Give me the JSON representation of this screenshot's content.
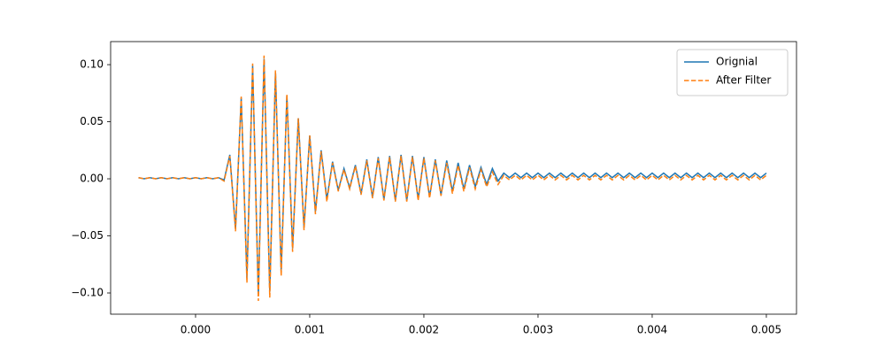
{
  "chart_data": {
    "type": "line",
    "x": [
      -0.0005,
      -0.00045,
      -0.0004,
      -0.00035,
      -0.0003,
      -0.00025,
      -0.0002,
      -0.00015,
      -0.0001,
      -5e-05,
      0,
      5e-05,
      0.0001,
      0.00015,
      0.0002,
      0.00025,
      0.0003,
      0.00035,
      0.0004,
      0.00045,
      0.0005,
      0.00055,
      0.0006,
      0.00065,
      0.0007,
      0.00075,
      0.0008,
      0.00085,
      0.0009,
      0.00095,
      0.001,
      0.00105,
      0.0011,
      0.00115,
      0.0012,
      0.00125,
      0.0013,
      0.00135,
      0.0014,
      0.00145,
      0.0015,
      0.00155,
      0.0016,
      0.00165,
      0.0017,
      0.00175,
      0.0018,
      0.00185,
      0.0019,
      0.00195,
      0.002,
      0.00205,
      0.0021,
      0.00215,
      0.0022,
      0.00225,
      0.0023,
      0.00235,
      0.0024,
      0.00245,
      0.0025,
      0.00255,
      0.0026,
      0.00265,
      0.0027,
      0.00275,
      0.0028,
      0.00285,
      0.0029,
      0.00295,
      0.003,
      0.00305,
      0.0031,
      0.00315,
      0.0032,
      0.00325,
      0.0033,
      0.00335,
      0.0034,
      0.00345,
      0.0035,
      0.00355,
      0.0036,
      0.00365,
      0.0037,
      0.00375,
      0.0038,
      0.00385,
      0.0039,
      0.00395,
      0.004,
      0.00405,
      0.0041,
      0.00415,
      0.0042,
      0.00425,
      0.0043,
      0.00435,
      0.0044,
      0.00445,
      0.0045,
      0.00455,
      0.0046,
      0.00465,
      0.0047,
      0.00475,
      0.0048,
      0.00485,
      0.0049,
      0.00495,
      0.005
    ],
    "series": [
      {
        "name": "Orignial",
        "color": "#1f77b4",
        "linestyle": "solid",
        "values": [
          0.001,
          0,
          0.001,
          0,
          0.001,
          0,
          0.001,
          0,
          0.001,
          0,
          0.001,
          0,
          0.001,
          0,
          0.001,
          -0.001,
          0.021,
          -0.044,
          0.071,
          -0.087,
          0.099,
          -0.102,
          0.105,
          -0.099,
          0.093,
          -0.081,
          0.073,
          -0.061,
          0.053,
          -0.043,
          0.038,
          -0.029,
          0.025,
          -0.018,
          0.015,
          -0.01,
          0.009,
          -0.008,
          0.012,
          -0.013,
          0.017,
          -0.016,
          0.019,
          -0.018,
          0.02,
          -0.019,
          0.021,
          -0.019,
          0.02,
          -0.018,
          0.019,
          -0.016,
          0.017,
          -0.014,
          0.016,
          -0.011,
          0.014,
          -0.009,
          0.012,
          -0.007,
          0.01,
          -0.005,
          0.009,
          -0.002,
          0.005,
          0.001,
          0.005,
          0.001,
          0.005,
          0.001,
          0.005,
          0.001,
          0.005,
          0.001,
          0.005,
          0.001,
          0.005,
          0.001,
          0.005,
          0.001,
          0.005,
          0.001,
          0.005,
          0.001,
          0.005,
          0.001,
          0.005,
          0.001,
          0.005,
          0.001,
          0.005,
          0.001,
          0.005,
          0.001,
          0.005,
          0.001,
          0.005,
          0.001,
          0.005,
          0.001,
          0.005,
          0.001,
          0.005,
          0.001,
          0.005,
          0.001,
          0.005,
          0.001,
          0.005,
          0.001,
          0.005
        ]
      },
      {
        "name": "After Filter",
        "color": "#ff7f0e",
        "linestyle": "dashed",
        "values": [
          0.001,
          0,
          0.001,
          0,
          0.001,
          0,
          0.001,
          0,
          0.001,
          0,
          0.001,
          0,
          0.001,
          0,
          0.001,
          -0.002,
          0.02,
          -0.046,
          0.072,
          -0.091,
          0.101,
          -0.107,
          0.108,
          -0.104,
          0.095,
          -0.085,
          0.074,
          -0.064,
          0.053,
          -0.045,
          0.038,
          -0.031,
          0.024,
          -0.02,
          0.014,
          -0.011,
          0.008,
          -0.009,
          0.011,
          -0.014,
          0.016,
          -0.017,
          0.018,
          -0.019,
          0.019,
          -0.02,
          0.02,
          -0.02,
          0.019,
          -0.019,
          0.018,
          -0.017,
          0.016,
          -0.015,
          0.014,
          -0.013,
          0.012,
          -0.011,
          0.01,
          -0.009,
          0.008,
          -0.007,
          0.006,
          -0.005,
          0.003,
          -0.001,
          0.003,
          -0.001,
          0.003,
          -0.001,
          0.003,
          -0.001,
          0.003,
          -0.001,
          0.003,
          -0.001,
          0.003,
          -0.001,
          0.003,
          -0.001,
          0.003,
          -0.001,
          0.003,
          -0.001,
          0.003,
          -0.001,
          0.003,
          -0.001,
          0.003,
          -0.001,
          0.003,
          -0.001,
          0.003,
          -0.001,
          0.003,
          -0.001,
          0.003,
          -0.001,
          0.003,
          -0.001,
          0.003,
          -0.001,
          0.003,
          -0.001,
          0.003,
          -0.001,
          0.003,
          -0.001,
          0.003,
          -0.001,
          0.003
        ]
      }
    ],
    "xlim": [
      -0.000744,
      0.005264
    ],
    "xticks": [
      {
        "value": 0,
        "label": "0.000"
      },
      {
        "value": 0.001,
        "label": "0.001"
      },
      {
        "value": 0.002,
        "label": "0.002"
      },
      {
        "value": 0.003,
        "label": "0.003"
      },
      {
        "value": 0.004,
        "label": "0.004"
      },
      {
        "value": 0.005,
        "label": "0.005"
      }
    ],
    "ylim": [
      -0.1186,
      0.1202
    ],
    "yticks": [
      {
        "value": -0.1,
        "label": "−0.10"
      },
      {
        "value": -0.05,
        "label": "−0.05"
      },
      {
        "value": 0,
        "label": "0.00"
      },
      0.05,
      {
        "value": 0.1,
        "label": "0.10"
      }
    ],
    "grid": false,
    "legend": "upper right"
  }
}
